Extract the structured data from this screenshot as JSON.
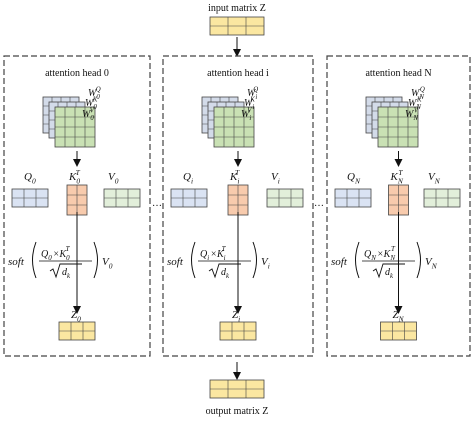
{
  "labels": {
    "input": "input matrix Z",
    "output": "output matrix Z",
    "ellipsis": "…"
  },
  "heads": [
    {
      "title": "attention head 0",
      "idx": "0",
      "q_sub": "0",
      "k_sub": "0",
      "v_sub": "0",
      "z_sub": "0"
    },
    {
      "title": "attention head i",
      "idx": "i",
      "q_sub": "i",
      "k_sub": "i",
      "v_sub": "i",
      "z_sub": "i"
    },
    {
      "title": "attention head N",
      "idx": "N",
      "q_sub": "N",
      "k_sub": "N",
      "v_sub": "N",
      "z_sub": "N"
    }
  ],
  "math": {
    "W": "W",
    "Wq_sup": "Q",
    "Wk_sup": "K",
    "Wv_sup": "V",
    "Q": "Q",
    "K": "K",
    "V": "V",
    "Z": "Z",
    "T": "T",
    "soft": "soft",
    "times": "×",
    "d": "d",
    "k_small": "k"
  },
  "colors": {
    "yellow": "#fbe7a1",
    "blue": "#dae3f3",
    "orange": "#f8cbad",
    "green": "#e2efda",
    "weight_back": "#d3dbe9",
    "weight_front": "#c9e1b4",
    "dash": "#444444"
  }
}
